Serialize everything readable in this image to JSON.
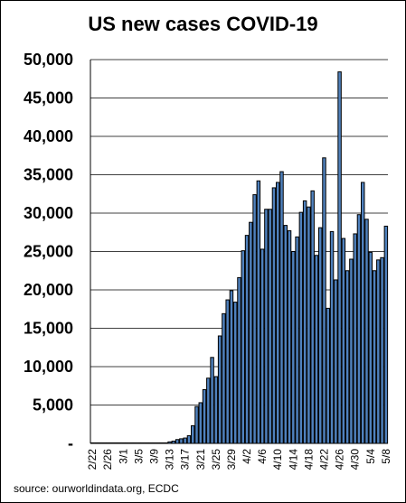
{
  "chart_data": {
    "type": "bar",
    "title": "US new cases  COVID-19",
    "source": "source: ourworldindata.org, ECDC",
    "bar_color": "#4f81bd",
    "bar_stroke": "#000000",
    "grid": "horizontal",
    "ylim": [
      0,
      50000
    ],
    "yticks": [
      0,
      5000,
      10000,
      15000,
      20000,
      25000,
      30000,
      35000,
      40000,
      45000,
      50000
    ],
    "ytick_labels": [
      "-",
      "5,000",
      "10,000",
      "15,000",
      "20,000",
      "25,000",
      "30,000",
      "35,000",
      "40,000",
      "45,000",
      "50,000"
    ],
    "xtick_labels": [
      "2/22",
      "2/26",
      "3/1",
      "3/5",
      "3/9",
      "3/13",
      "3/17",
      "3/21",
      "3/25",
      "3/29",
      "4/2",
      "4/6",
      "4/10",
      "4/14",
      "4/18",
      "4/22",
      "4/26",
      "4/30",
      "5/4",
      "5/8"
    ],
    "categories": [
      "2/22",
      "2/23",
      "2/24",
      "2/25",
      "2/26",
      "2/27",
      "2/28",
      "2/29",
      "3/1",
      "3/2",
      "3/3",
      "3/4",
      "3/5",
      "3/6",
      "3/7",
      "3/8",
      "3/9",
      "3/10",
      "3/11",
      "3/12",
      "3/13",
      "3/14",
      "3/15",
      "3/16",
      "3/17",
      "3/18",
      "3/19",
      "3/20",
      "3/21",
      "3/22",
      "3/23",
      "3/24",
      "3/25",
      "3/26",
      "3/27",
      "3/28",
      "3/29",
      "3/30",
      "3/31",
      "4/1",
      "4/2",
      "4/3",
      "4/4",
      "4/5",
      "4/6",
      "4/7",
      "4/8",
      "4/9",
      "4/10",
      "4/11",
      "4/12",
      "4/13",
      "4/14",
      "4/15",
      "4/16",
      "4/17",
      "4/18",
      "4/19",
      "4/20",
      "4/21",
      "4/22",
      "4/23",
      "4/24",
      "4/25",
      "4/26",
      "4/27",
      "4/28",
      "4/29",
      "4/30",
      "5/1",
      "5/2",
      "5/3",
      "5/4",
      "5/5",
      "5/6",
      "5/7",
      "5/8"
    ],
    "values": [
      0,
      0,
      0,
      0,
      0,
      0,
      0,
      0,
      0,
      0,
      0,
      0,
      0,
      0,
      0,
      0,
      0,
      0,
      0,
      0,
      200,
      300,
      500,
      600,
      700,
      1000,
      2300,
      4800,
      5300,
      7000,
      8500,
      11200,
      8700,
      14000,
      16900,
      18700,
      19900,
      18400,
      21600,
      25100,
      27100,
      28800,
      32400,
      34200,
      25300,
      30500,
      30500,
      33300,
      34000,
      35400,
      28400,
      27700,
      25000,
      26900,
      30100,
      31600,
      30800,
      32900,
      24500,
      28100,
      37200,
      17600,
      27600,
      21300,
      48400,
      26700,
      22500,
      24000,
      27300,
      29800,
      34000,
      29200,
      24900,
      22500,
      23900,
      24200,
      28300
    ]
  }
}
